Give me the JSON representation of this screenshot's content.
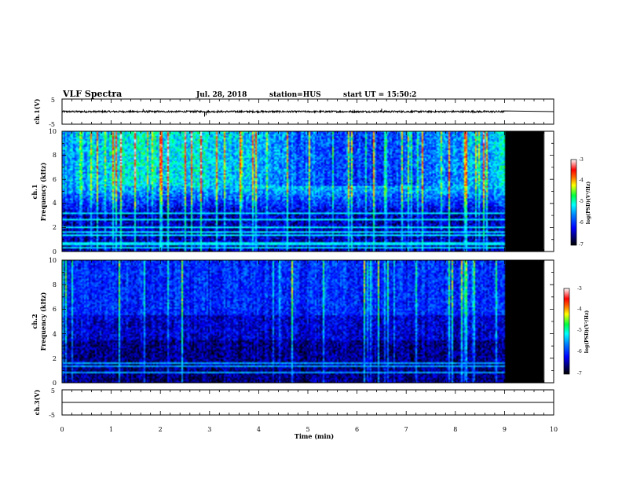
{
  "header": {
    "title": "VLF Spectra",
    "date": "Jul. 28, 2018",
    "station": "station=HUS",
    "start": "start UT =  15:50:2"
  },
  "chart_data": [
    {
      "type": "line",
      "name": "ch1-waveform",
      "ylabel": "ch.1(V)",
      "xlim": [
        0,
        10
      ],
      "ylim": [
        -5,
        5
      ],
      "y_ticklabels": [
        "5",
        "-5"
      ],
      "baseline": 0,
      "data_end_min": 9.0,
      "flat_after_value": 0,
      "spikes": [
        {
          "x": 2.9,
          "y": -2.0
        },
        {
          "x": 2.93,
          "y": -1.4
        },
        {
          "x": 6.5,
          "y": 1.2
        },
        {
          "x": 1.65,
          "y": 1.0
        }
      ]
    },
    {
      "type": "heatmap",
      "name": "ch1-spectrogram",
      "ylabel": "ch.1",
      "ylabel2": "Frequency (kHz)",
      "xlim": [
        0,
        10
      ],
      "ylim": [
        0,
        10
      ],
      "y_ticklabels": [
        "0",
        "2",
        "4",
        "6",
        "8",
        "10"
      ],
      "data_end_min": 9.0,
      "no_data_end_min": 9.8,
      "colorbar": {
        "label": "log(PSD)(V²/Hz)",
        "range": [
          -7,
          -3
        ],
        "ticklabels": [
          "-3",
          "-4",
          "-5",
          "-6",
          "-7"
        ]
      },
      "lines_khz": [
        0.2,
        0.5,
        0.7,
        1.3,
        1.6,
        2.0,
        2.6,
        3.2
      ]
    },
    {
      "type": "heatmap",
      "name": "ch2-spectrogram",
      "ylabel": "ch.2",
      "ylabel2": "Frequency (kHz)",
      "xlim": [
        0,
        10
      ],
      "ylim": [
        0,
        10
      ],
      "y_ticklabels": [
        "0",
        "2",
        "4",
        "6",
        "8",
        "10"
      ],
      "data_end_min": 9.0,
      "no_data_end_min": 9.8,
      "colorbar": {
        "label": "log(PSD)(V²/Hz)",
        "range": [
          -7,
          -3
        ],
        "ticklabels": [
          "-3",
          "-4",
          "-5",
          "-6",
          "-7"
        ]
      },
      "lines_khz": [
        0.8,
        1.3,
        1.6
      ]
    },
    {
      "type": "line",
      "name": "ch3-waveform",
      "ylabel": "ch.3(V)",
      "xlabel": "Time (min)",
      "xlim": [
        0,
        10
      ],
      "ylim": [
        -5,
        5
      ],
      "y_ticklabels": [
        "5",
        "-5"
      ],
      "x_ticklabels": [
        "0",
        "1",
        "2",
        "3",
        "4",
        "5",
        "6",
        "7",
        "8",
        "9",
        "10"
      ],
      "baseline": 0
    }
  ]
}
